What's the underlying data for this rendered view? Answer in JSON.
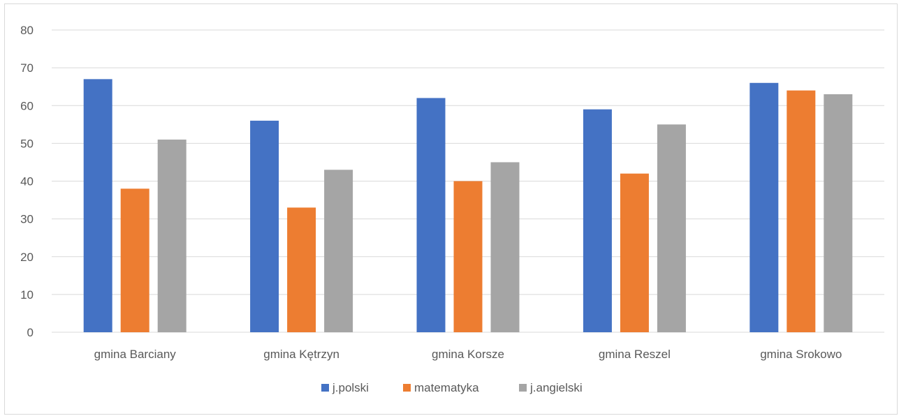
{
  "chart_data": {
    "type": "bar",
    "categories": [
      "gmina Barciany",
      "gmina Kętrzyn",
      "gmina Korsze",
      "gmina Reszel",
      "gmina Srokowo"
    ],
    "series": [
      {
        "name": "j.polski",
        "color": "#4472C4",
        "values": [
          67,
          56,
          62,
          59,
          66
        ]
      },
      {
        "name": "matematyka",
        "color": "#ED7D31",
        "values": [
          38,
          33,
          40,
          42,
          64
        ]
      },
      {
        "name": "j.angielski",
        "color": "#A5A5A5",
        "values": [
          51,
          43,
          45,
          55,
          63
        ]
      }
    ],
    "ylim": [
      0,
      80
    ],
    "yticks": [
      0,
      10,
      20,
      30,
      40,
      50,
      60,
      70,
      80
    ],
    "grid": true,
    "legend_position": "bottom",
    "title": "",
    "xlabel": "",
    "ylabel": ""
  }
}
